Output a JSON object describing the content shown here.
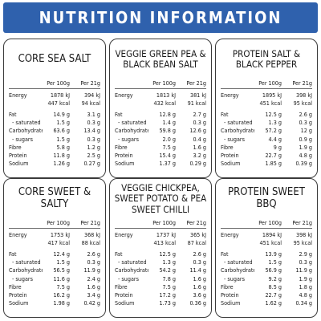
{
  "header": {
    "title": "NUTRITION INFORMATION"
  },
  "table_header": {
    "per100": "Per 100g",
    "per21": "Per 21g"
  },
  "row_labels": {
    "energy": "Energy",
    "fat": "Fat",
    "saturated": "- saturated",
    "carbohydrate": "Carbohydrate",
    "sugars": "- sugars",
    "fibre": "Fibre",
    "protein": "Protein",
    "sodium": "Sodium"
  },
  "products": [
    {
      "name": "CORE SEA SALT",
      "energy_kj": [
        "1878 kJ",
        "394 kJ"
      ],
      "energy_kcal": [
        "447 kcal",
        "94 kcal"
      ],
      "fat": [
        "14.9 g",
        "3.1 g"
      ],
      "saturated": [
        "1.5 g",
        "0.3 g"
      ],
      "carbohydrate": [
        "63.6 g",
        "13.4 g"
      ],
      "sugars": [
        "1.5 g",
        "0.3 g"
      ],
      "fibre": [
        "5.8 g",
        "1.2 g"
      ],
      "protein": [
        "11.8 g",
        "2.5 g"
      ],
      "sodium": [
        "1.26 g",
        "0.27 g"
      ]
    },
    {
      "name": "VEGGIE GREEN PEA & BLACK BEAN SALT",
      "energy_kj": [
        "1813 kJ",
        "381 kJ"
      ],
      "energy_kcal": [
        "432 kcal",
        "91 kcal"
      ],
      "fat": [
        "12.8 g",
        "2.7 g"
      ],
      "saturated": [
        "1.4 g",
        "0.3 g"
      ],
      "carbohydrate": [
        "59.8 g",
        "12.6 g"
      ],
      "sugars": [
        "2.0 g",
        "0.4 g"
      ],
      "fibre": [
        "7.5 g",
        "1.6 g"
      ],
      "protein": [
        "15.4 g",
        "3.2 g"
      ],
      "sodium": [
        "1.37 g",
        "0.29 g"
      ]
    },
    {
      "name": "PROTEIN SALT & BLACK PEPPER",
      "energy_kj": [
        "1895 kJ",
        "398 kJ"
      ],
      "energy_kcal": [
        "451 kcal",
        "95 kcal"
      ],
      "fat": [
        "12.5 g",
        "2.6 g"
      ],
      "saturated": [
        "1.3 g",
        "0.3 g"
      ],
      "carbohydrate": [
        "57.2 g",
        "12 g"
      ],
      "sugars": [
        "4.4 g",
        "0.9 g"
      ],
      "fibre": [
        "9 g",
        "1.9 g"
      ],
      "protein": [
        "22.7 g",
        "4.8 g"
      ],
      "sodium": [
        "1.85 g",
        "0.39 g"
      ]
    },
    {
      "name": "CORE SWEET & SALTY",
      "energy_kj": [
        "1753 kJ",
        "368 kJ"
      ],
      "energy_kcal": [
        "417 kcal",
        "88 kcal"
      ],
      "fat": [
        "12.4 g",
        "2.6 g"
      ],
      "saturated": [
        "1.5 g",
        "0.3 g"
      ],
      "carbohydrate": [
        "56.5 g",
        "11.9 g"
      ],
      "sugars": [
        "11.6 g",
        "2.4 g"
      ],
      "fibre": [
        "7.5 g",
        "1.6 g"
      ],
      "protein": [
        "16.2 g",
        "3.4 g"
      ],
      "sodium": [
        "1.98 g",
        "0.42 g"
      ]
    },
    {
      "name": "VEGGIE CHICKPEA, SWEET POTATO & PEA SWEET CHILLI",
      "energy_kj": [
        "1737 kJ",
        "365 kJ"
      ],
      "energy_kcal": [
        "413 kcal",
        "87 kcal"
      ],
      "fat": [
        "12.5 g",
        "2.6 g"
      ],
      "saturated": [
        "1.3 g",
        "0.3 g"
      ],
      "carbohydrate": [
        "54.2 g",
        "11.4 g"
      ],
      "sugars": [
        "7.8 g",
        "1.6 g"
      ],
      "fibre": [
        "7.5 g",
        "1.6 g"
      ],
      "protein": [
        "17.2 g",
        "3.6 g"
      ],
      "sodium": [
        "1.73 g",
        "0.36 g"
      ]
    },
    {
      "name": "PROTEIN SWEET BBQ",
      "energy_kj": [
        "1894 kJ",
        "398 kJ"
      ],
      "energy_kcal": [
        "451 kcal",
        "95 kcal"
      ],
      "fat": [
        "13.9 g",
        "2.9 g"
      ],
      "saturated": [
        "1.5 g",
        "0.3 g"
      ],
      "carbohydrate": [
        "56.9 g",
        "11.9 g"
      ],
      "sugars": [
        "9.2 g",
        "1.9 g"
      ],
      "fibre": [
        "8.5 g",
        "1.8 g"
      ],
      "protein": [
        "22.7 g",
        "4.8 g"
      ],
      "sodium": [
        "1.62 g",
        "0.34 g"
      ]
    }
  ]
}
